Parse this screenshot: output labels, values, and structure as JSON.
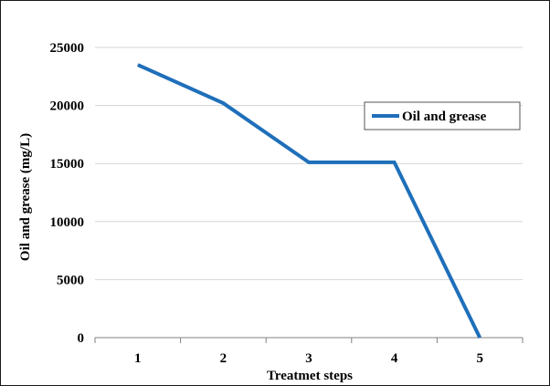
{
  "chart_data": {
    "type": "line",
    "title": "",
    "xlabel": "Treatmet steps",
    "ylabel": "Oil and grease (mg/L)",
    "categories": [
      "1",
      "2",
      "3",
      "4",
      "5"
    ],
    "series": [
      {
        "name": "Oil and grease",
        "values": [
          23500,
          20200,
          15100,
          15100,
          0
        ],
        "color": "#1f6fba"
      }
    ],
    "ylim": [
      0,
      25000
    ],
    "yticks": [
      "0",
      "5000",
      "10000",
      "15000",
      "20000",
      "25000"
    ],
    "grid": true,
    "legend_position": "right"
  }
}
